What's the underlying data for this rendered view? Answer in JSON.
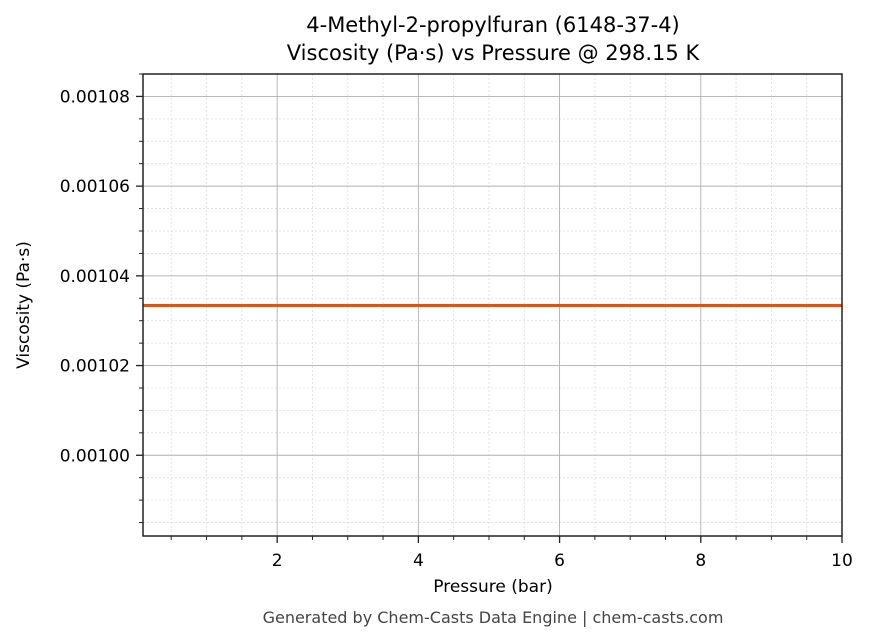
{
  "chart_data": {
    "type": "line",
    "title": "4-Methyl-2-propylfuran (6148-37-4)",
    "subtitle": "Viscosity (Pa·s) vs Pressure @ 298.15 K",
    "xlabel": "Pressure (bar)",
    "ylabel": "Viscosity (Pa·s)",
    "xlim": [
      0.1,
      10
    ],
    "ylim": [
      0.000982,
      0.001085
    ],
    "x_ticks": [
      2,
      4,
      6,
      8,
      10
    ],
    "x_tick_labels": [
      "2",
      "4",
      "6",
      "8",
      "10"
    ],
    "y_ticks": [
      0.001,
      0.00102,
      0.00104,
      0.00106,
      0.00108
    ],
    "y_tick_labels": [
      "0.00100",
      "0.00102",
      "0.00104",
      "0.00106",
      "0.00108"
    ],
    "grid": true,
    "legend": null,
    "series": [
      {
        "name": "Viscosity",
        "color": "#d9541e",
        "x": [
          0.1,
          1,
          2,
          3,
          4,
          5,
          6,
          7,
          8,
          9,
          10
        ],
        "values": [
          0.0010334,
          0.0010334,
          0.0010334,
          0.0010334,
          0.0010334,
          0.0010334,
          0.0010334,
          0.0010334,
          0.0010334,
          0.0010334,
          0.0010334
        ]
      }
    ]
  },
  "footer": "Generated by Chem-Casts Data Engine | chem-casts.com"
}
